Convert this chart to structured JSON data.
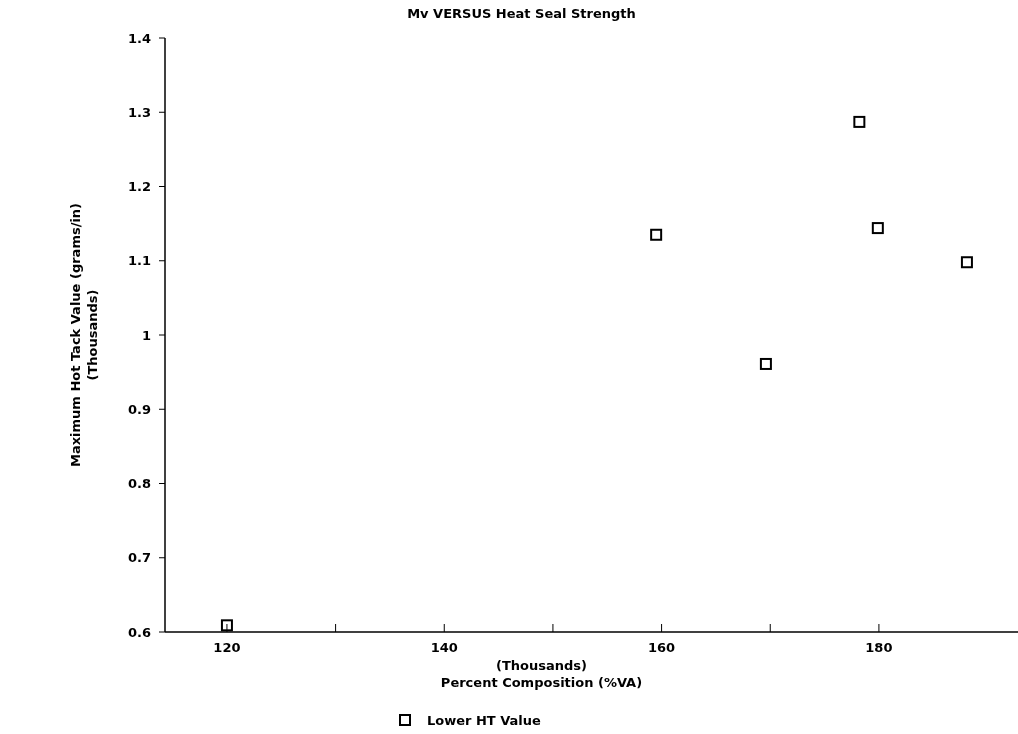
{
  "chart_data": {
    "type": "scatter",
    "title": "Mv VERSUS Heat Seal Strength",
    "xlabel": "(Thousands)\nPercent Composition (%VA)",
    "ylabel": "Maximum Hot Tack Value (grams/in)\n(Thousands)",
    "x": [
      120,
      159.5,
      169.6,
      178.2,
      179.9,
      188.1
    ],
    "series": [
      {
        "name": "Lower HT Value",
        "color": "#000000",
        "values": [
          0.609,
          1.135,
          0.961,
          1.287,
          1.144,
          1.098
        ]
      }
    ],
    "xlim": [
      114.3,
      192.8
    ],
    "xticks": [
      120,
      {
        "value": 130,
        "label": null
      },
      140,
      {
        "value": 150,
        "label": null
      },
      160,
      {
        "value": 170,
        "label": null
      },
      180
    ],
    "ylim": [
      0.6,
      1.4
    ],
    "yticks": [
      0.6,
      0.7,
      0.8,
      0.9,
      1,
      1.1,
      1.2,
      1.3,
      1.4
    ],
    "marker": "square",
    "grid": false,
    "legend": "bottom"
  }
}
